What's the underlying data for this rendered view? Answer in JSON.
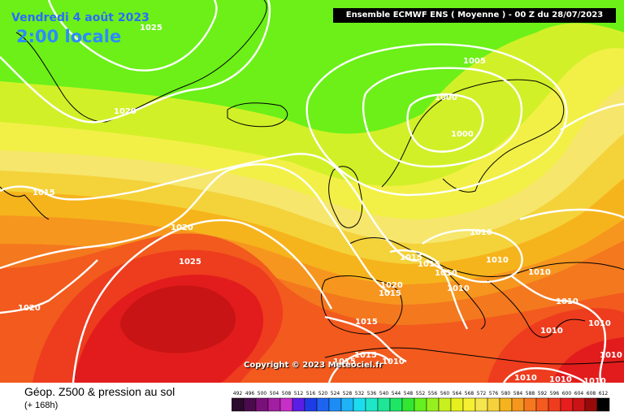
{
  "header": {
    "date": "Vendredi 4 août 2023",
    "local_time": "2:00 locale",
    "model": "Ensemble ECMWF ENS  ( Moyenne )  -  00 Z du 28/07/2023"
  },
  "copyright": "Copyright © 2023 Meteociel.fr",
  "footer": {
    "title": "Géop. Z500 & pression au sol",
    "subtitle": "(+ 168h)"
  },
  "isobar_labels": [
    "1025",
    "1020",
    "1015",
    "1020",
    "1025",
    "1020",
    "1005",
    "1000",
    "1000",
    "1010",
    "1015",
    "1015",
    "1020",
    "1015",
    "1010",
    "1010",
    "1010",
    "1010",
    "1015",
    "1015",
    "1010",
    "1015",
    "1010",
    "1010",
    "1010",
    "1010",
    "1010",
    "1010",
    "1010"
  ],
  "legend": {
    "values": [
      "492",
      "496",
      "500",
      "504",
      "508",
      "512",
      "516",
      "520",
      "524",
      "528",
      "532",
      "536",
      "540",
      "544",
      "548",
      "552",
      "556",
      "560",
      "564",
      "568",
      "572",
      "576",
      "580",
      "584",
      "588",
      "592",
      "596",
      "600",
      "604",
      "608",
      "612"
    ],
    "colors": [
      "#2b0a2b",
      "#4b0a4b",
      "#7a107a",
      "#a21ea2",
      "#c82ec8",
      "#5a1ee6",
      "#1e3ce6",
      "#1e64f0",
      "#1e8cf5",
      "#1eb4f5",
      "#1edcf0",
      "#1ee6c8",
      "#1ee696",
      "#1ee664",
      "#32e632",
      "#64f01e",
      "#96f01e",
      "#c8f01e",
      "#e6f01e",
      "#f5f032",
      "#f5e650",
      "#f5d23c",
      "#f5b41e",
      "#f5961e",
      "#f5781e",
      "#f55a1e",
      "#f03c1e",
      "#e61e1e",
      "#c81414",
      "#960a0a",
      "#000000"
    ]
  },
  "colors": {
    "z500_556": "#6cf018",
    "z500_564": "#d2f028",
    "z500_568": "#f2f046",
    "z500_572": "#f6e66c",
    "z500_576": "#f4d23a",
    "z500_580": "#f6b41c",
    "z500_584": "#f6961e",
    "z500_588": "#f4781e",
    "z500_592": "#f25a1e",
    "z500_596": "#ee3c1e",
    "z500_600": "#e21c1c",
    "z500_604": "#c81414",
    "isobar": "#ffffff",
    "coastline": "#000000"
  }
}
